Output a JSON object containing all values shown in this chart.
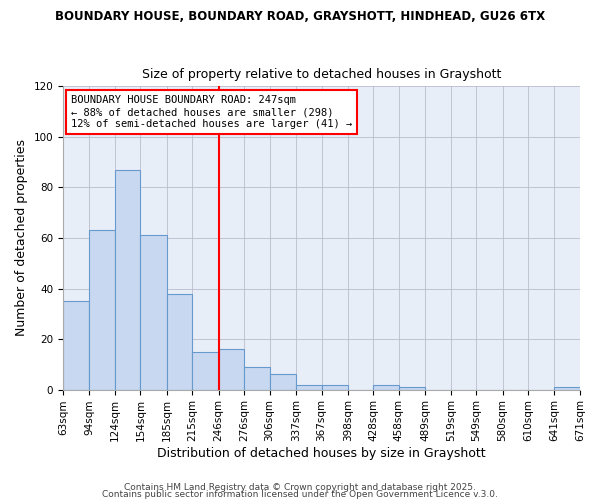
{
  "title1": "BOUNDARY HOUSE, BOUNDARY ROAD, GRAYSHOTT, HINDHEAD, GU26 6TX",
  "title2": "Size of property relative to detached houses in Grayshott",
  "xlabel": "Distribution of detached houses by size in Grayshott",
  "ylabel": "Number of detached properties",
  "bar_color": "#c8d8f0",
  "bar_edge_color": "#6699cc",
  "plot_bg_color": "#e8eef8",
  "fig_bg_color": "#ffffff",
  "grid_color": "#bbbbcc",
  "bins": [
    63,
    94,
    124,
    154,
    185,
    215,
    246,
    276,
    306,
    337,
    367,
    398,
    428,
    458,
    489,
    519,
    549,
    580,
    610,
    641,
    671
  ],
  "counts": [
    35,
    63,
    87,
    61,
    38,
    15,
    16,
    9,
    6,
    2,
    2,
    0,
    2,
    1,
    0,
    0,
    0,
    0,
    0,
    1
  ],
  "red_line_x": 246,
  "annotation_text": "BOUNDARY HOUSE BOUNDARY ROAD: 247sqm\n← 88% of detached houses are smaller (298)\n12% of semi-detached houses are larger (41) →",
  "annotation_box_color": "white",
  "annotation_box_edge": "red",
  "ylim": [
    0,
    120
  ],
  "yticks": [
    0,
    20,
    40,
    60,
    80,
    100,
    120
  ],
  "tick_labels": [
    "63sqm",
    "94sqm",
    "124sqm",
    "154sqm",
    "185sqm",
    "215sqm",
    "246sqm",
    "276sqm",
    "306sqm",
    "337sqm",
    "367sqm",
    "398sqm",
    "428sqm",
    "458sqm",
    "489sqm",
    "519sqm",
    "549sqm",
    "580sqm",
    "610sqm",
    "641sqm",
    "671sqm"
  ],
  "footer1": "Contains HM Land Registry data © Crown copyright and database right 2025.",
  "footer2": "Contains public sector information licensed under the Open Government Licence v.3.0.",
  "title1_fontsize": 8.5,
  "title2_fontsize": 9,
  "annotation_fontsize": 7.5,
  "axis_label_fontsize": 9,
  "tick_fontsize": 7.5,
  "footer_fontsize": 6.5
}
